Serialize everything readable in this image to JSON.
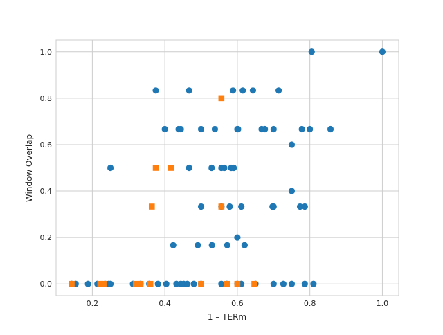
{
  "chart_data": {
    "type": "scatter",
    "xlabel": "1 – TERm",
    "ylabel": "Window Overlap",
    "xlim": [
      0.1,
      1.045
    ],
    "ylim": [
      -0.05,
      1.05
    ],
    "xticks": [
      0.2,
      0.4,
      0.6,
      0.8,
      1.0
    ],
    "xtick_labels": [
      "0.2",
      "0.4",
      "0.6",
      "0.8",
      "1.0"
    ],
    "yticks": [
      0.0,
      0.2,
      0.4,
      0.6,
      0.8,
      1.0
    ],
    "ytick_labels": [
      "0.0",
      "0.2",
      "0.4",
      "0.6",
      "0.8",
      "1.0"
    ],
    "grid": true,
    "series": [
      {
        "marker": "circle",
        "color": "#1f77b4",
        "points": [
          [
            0.805,
            1.0
          ],
          [
            1.0,
            1.0
          ],
          [
            0.375,
            0.833
          ],
          [
            0.467,
            0.833
          ],
          [
            0.588,
            0.833
          ],
          [
            0.615,
            0.833
          ],
          [
            0.643,
            0.833
          ],
          [
            0.714,
            0.833
          ],
          [
            0.4,
            0.667
          ],
          [
            0.438,
            0.667
          ],
          [
            0.444,
            0.667
          ],
          [
            0.5,
            0.667
          ],
          [
            0.538,
            0.667
          ],
          [
            0.6,
            0.667
          ],
          [
            0.602,
            0.667
          ],
          [
            0.667,
            0.667
          ],
          [
            0.676,
            0.667
          ],
          [
            0.7,
            0.667
          ],
          [
            0.778,
            0.667
          ],
          [
            0.8,
            0.667
          ],
          [
            0.857,
            0.667
          ],
          [
            0.75,
            0.6
          ],
          [
            0.25,
            0.5
          ],
          [
            0.467,
            0.5
          ],
          [
            0.529,
            0.5
          ],
          [
            0.556,
            0.5
          ],
          [
            0.564,
            0.5
          ],
          [
            0.583,
            0.5
          ],
          [
            0.59,
            0.5
          ],
          [
            0.75,
            0.4
          ],
          [
            0.5,
            0.333
          ],
          [
            0.556,
            0.333
          ],
          [
            0.579,
            0.333
          ],
          [
            0.611,
            0.333
          ],
          [
            0.697,
            0.333
          ],
          [
            0.7,
            0.333
          ],
          [
            0.773,
            0.333
          ],
          [
            0.786,
            0.333
          ],
          [
            0.6,
            0.2
          ],
          [
            0.423,
            0.167
          ],
          [
            0.491,
            0.167
          ],
          [
            0.53,
            0.167
          ],
          [
            0.572,
            0.167
          ],
          [
            0.62,
            0.167
          ],
          [
            0.143,
            0.0
          ],
          [
            0.154,
            0.0
          ],
          [
            0.188,
            0.0
          ],
          [
            0.214,
            0.0
          ],
          [
            0.235,
            0.0
          ],
          [
            0.245,
            0.0
          ],
          [
            0.25,
            0.0
          ],
          [
            0.312,
            0.0
          ],
          [
            0.333,
            0.0
          ],
          [
            0.357,
            0.0
          ],
          [
            0.381,
            0.0
          ],
          [
            0.404,
            0.0
          ],
          [
            0.432,
            0.0
          ],
          [
            0.444,
            0.0
          ],
          [
            0.452,
            0.0
          ],
          [
            0.462,
            0.0
          ],
          [
            0.48,
            0.0
          ],
          [
            0.5,
            0.0
          ],
          [
            0.556,
            0.0
          ],
          [
            0.571,
            0.0
          ],
          [
            0.6,
            0.0
          ],
          [
            0.611,
            0.0
          ],
          [
            0.65,
            0.0
          ],
          [
            0.7,
            0.0
          ],
          [
            0.727,
            0.0
          ],
          [
            0.75,
            0.0
          ],
          [
            0.786,
            0.0
          ],
          [
            0.81,
            0.0
          ]
        ]
      },
      {
        "marker": "square",
        "color": "#ff7f0e",
        "points": [
          [
            0.556,
            0.8
          ],
          [
            0.375,
            0.5
          ],
          [
            0.417,
            0.5
          ],
          [
            0.364,
            0.333
          ],
          [
            0.556,
            0.333
          ],
          [
            0.143,
            0.0
          ],
          [
            0.222,
            0.0
          ],
          [
            0.231,
            0.0
          ],
          [
            0.32,
            0.0
          ],
          [
            0.333,
            0.0
          ],
          [
            0.36,
            0.0
          ],
          [
            0.5,
            0.0
          ],
          [
            0.571,
            0.0
          ],
          [
            0.6,
            0.0
          ],
          [
            0.647,
            0.0
          ]
        ]
      }
    ]
  }
}
